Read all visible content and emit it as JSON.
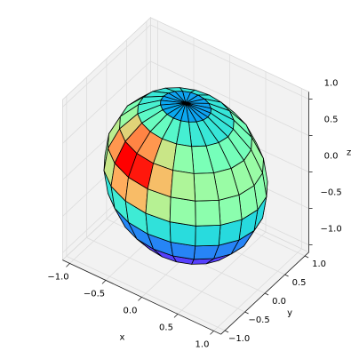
{
  "chart_data": {
    "type": "surface3d",
    "xlabel": "x",
    "ylabel": "y",
    "zlabel": "z",
    "xlim": [
      -1.1,
      1.1
    ],
    "ylim": [
      -1.1,
      1.1
    ],
    "zlim": [
      -1.1,
      1.1
    ],
    "xticks": [
      {
        "value": -1,
        "label": "−1.0"
      },
      {
        "value": -0.5,
        "label": "−0.5"
      },
      {
        "value": 0,
        "label": "0.0"
      },
      {
        "value": 0.5,
        "label": "0.5"
      },
      {
        "value": 1,
        "label": "1.0"
      }
    ],
    "yticks": [
      {
        "value": -1,
        "label": "−1.0"
      },
      {
        "value": -0.5,
        "label": "−0.5"
      },
      {
        "value": 0,
        "label": "0.0"
      },
      {
        "value": 0.5,
        "label": "0.5"
      },
      {
        "value": 1,
        "label": "1.0"
      }
    ],
    "zticks": [
      {
        "value": -1,
        "label": "−1.0"
      },
      {
        "value": -0.5,
        "label": "−0.5"
      },
      {
        "value": 0,
        "label": "0.0"
      },
      {
        "value": 0.5,
        "label": "0.5"
      },
      {
        "value": 1,
        "label": "1.0"
      }
    ],
    "colormap": "rainbow",
    "grid": true
  }
}
